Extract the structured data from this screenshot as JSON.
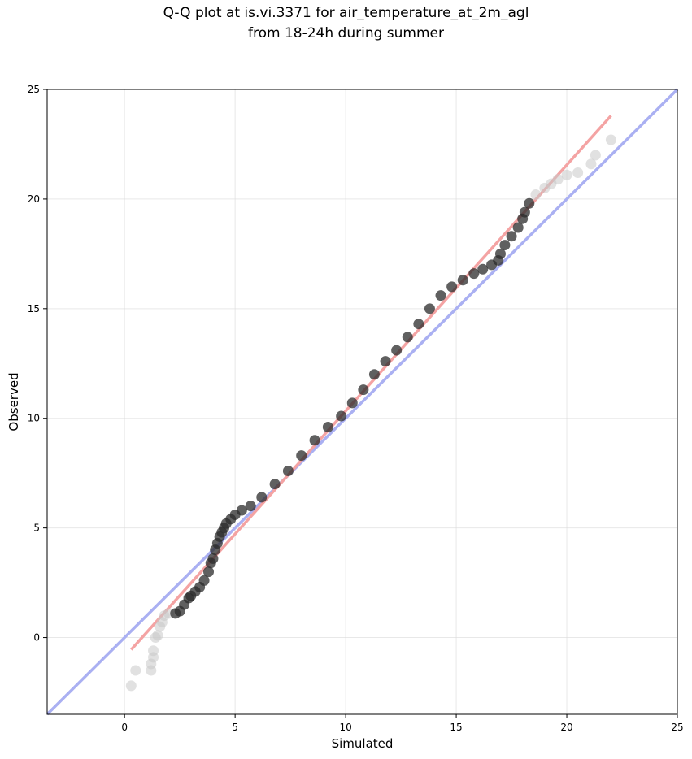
{
  "chart_data": {
    "type": "scatter",
    "title_line1": "Q-Q plot at is.vi.3371 for air_temperature_at_2m_agl",
    "title_line2": "from 18-24h during summer",
    "xlabel": "Simulated",
    "ylabel": "Observed",
    "xlim": [
      -3.5,
      25
    ],
    "ylim": [
      -3.5,
      25
    ],
    "xticks": [
      0,
      5,
      10,
      15,
      20,
      25
    ],
    "yticks": [
      0,
      5,
      10,
      15,
      20,
      25
    ],
    "grid": true,
    "reference_line": {
      "x": [
        -3.5,
        25
      ],
      "y": [
        -3.5,
        25
      ],
      "color": "#aab0f2"
    },
    "fit_line": {
      "x": [
        0.3,
        22.0
      ],
      "y": [
        -0.55,
        23.8
      ],
      "color": "#f4a3a3"
    },
    "points": {
      "x": [
        0.3,
        0.5,
        1.2,
        1.2,
        1.3,
        1.3,
        1.4,
        1.5,
        1.6,
        1.7,
        1.8,
        2.0,
        2.3,
        2.5,
        2.7,
        2.9,
        3.0,
        3.2,
        3.4,
        3.6,
        3.8,
        3.9,
        4.0,
        4.1,
        4.2,
        4.3,
        4.4,
        4.5,
        4.6,
        4.8,
        5.0,
        5.3,
        5.7,
        6.2,
        6.8,
        7.4,
        8.0,
        8.6,
        9.2,
        9.8,
        10.3,
        10.8,
        11.3,
        11.8,
        12.3,
        12.8,
        13.3,
        13.8,
        14.3,
        14.8,
        15.3,
        15.8,
        16.2,
        16.6,
        16.9,
        17.0,
        17.2,
        17.5,
        17.8,
        18.0,
        18.1,
        18.3,
        18.6,
        19.0,
        19.3,
        19.6,
        20.0,
        20.5,
        21.1,
        21.3,
        22.0
      ],
      "y": [
        -2.2,
        -1.5,
        -1.5,
        -1.2,
        -0.9,
        -0.6,
        0.0,
        0.1,
        0.5,
        0.7,
        1.0,
        1.1,
        1.1,
        1.2,
        1.5,
        1.8,
        1.9,
        2.1,
        2.3,
        2.6,
        3.0,
        3.4,
        3.6,
        4.0,
        4.3,
        4.6,
        4.8,
        5.0,
        5.2,
        5.4,
        5.6,
        5.8,
        6.0,
        6.4,
        7.0,
        7.6,
        8.3,
        9.0,
        9.6,
        10.1,
        10.7,
        11.3,
        12.0,
        12.6,
        13.1,
        13.7,
        14.3,
        15.0,
        15.6,
        16.0,
        16.3,
        16.6,
        16.8,
        17.0,
        17.2,
        17.5,
        17.9,
        18.3,
        18.7,
        19.1,
        19.4,
        19.8,
        20.2,
        20.5,
        20.7,
        20.9,
        21.1,
        21.2,
        21.6,
        22.0,
        22.7
      ]
    }
  }
}
